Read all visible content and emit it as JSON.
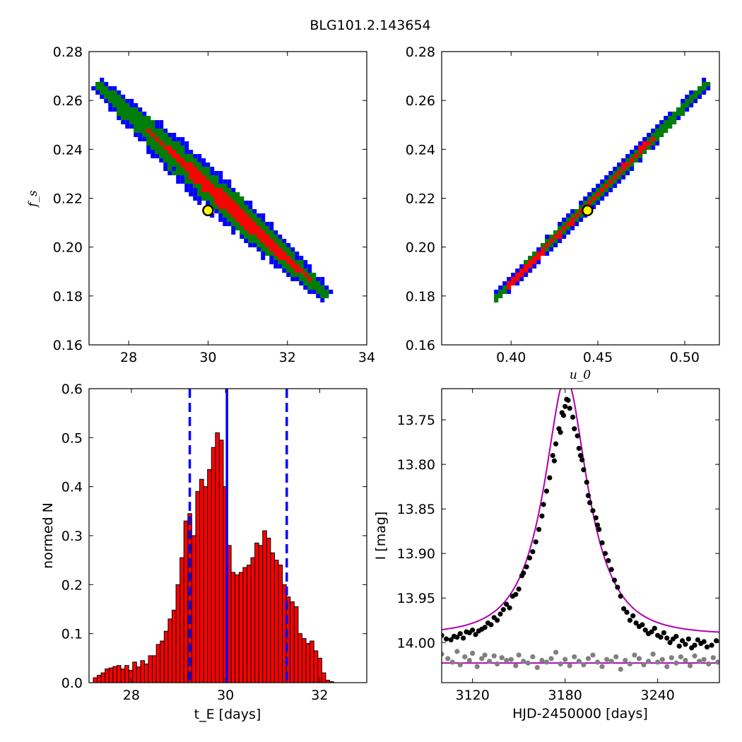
{
  "figure": {
    "title": "BLG101.2.143654"
  },
  "chart_data": [
    {
      "type": "heatmap",
      "title": "",
      "xlabel": "",
      "ylabel": "f_s",
      "xlim": [
        27,
        34
      ],
      "ylim": [
        0.16,
        0.28
      ],
      "xticks": [
        "28",
        "30",
        "32",
        "34"
      ],
      "yticks": [
        "0.16",
        "0.18",
        "0.20",
        "0.22",
        "0.24",
        "0.26",
        "0.28"
      ],
      "levels": [
        "blue",
        "green",
        "red"
      ],
      "colors": {
        "blue": "#0000ff",
        "green": "#008000",
        "red": "#ff0000"
      },
      "ridge": [
        [
          27.2,
          0.267
        ],
        [
          33.0,
          0.18
        ]
      ],
      "best_fit": {
        "x": 30.0,
        "y": 0.215
      },
      "grid": false
    },
    {
      "type": "heatmap",
      "title": "",
      "xlabel": "u_0",
      "ylabel": "",
      "xlim": [
        0.36,
        0.52
      ],
      "ylim": [
        0.16,
        0.28
      ],
      "xticks": [
        "0.40",
        "0.45",
        "0.50"
      ],
      "yticks": [
        "0.16",
        "0.18",
        "0.20",
        "0.22",
        "0.24",
        "0.26",
        "0.28"
      ],
      "levels": [
        "blue",
        "green",
        "red"
      ],
      "colors": {
        "blue": "#0000ff",
        "green": "#008000",
        "red": "#ff0000"
      },
      "ridge": [
        [
          0.391,
          0.179
        ],
        [
          0.513,
          0.267
        ]
      ],
      "best_fit": {
        "x": 0.444,
        "y": 0.215
      },
      "grid": false
    },
    {
      "type": "bar",
      "title": "",
      "xlabel": "t_E [days]",
      "ylabel": "normed N",
      "xlim": [
        27.1,
        33.0
      ],
      "ylim": [
        0,
        0.6
      ],
      "xticks": [
        "28",
        "30",
        "32"
      ],
      "yticks": [
        "0.0",
        "0.1",
        "0.2",
        "0.3",
        "0.4",
        "0.5",
        "0.6"
      ],
      "bin_start": 27.19,
      "bin_width": 0.0837,
      "values": [
        0.01,
        0.015,
        0.02,
        0.028,
        0.03,
        0.033,
        0.035,
        0.028,
        0.035,
        0.025,
        0.042,
        0.032,
        0.045,
        0.038,
        0.055,
        0.055,
        0.078,
        0.085,
        0.105,
        0.13,
        0.148,
        0.2,
        0.255,
        0.33,
        0.345,
        0.3,
        0.39,
        0.415,
        0.4,
        0.435,
        0.48,
        0.51,
        0.495,
        0.4,
        0.28,
        0.225,
        0.22,
        0.225,
        0.235,
        0.24,
        0.255,
        0.285,
        0.28,
        0.31,
        0.295,
        0.265,
        0.25,
        0.24,
        0.2,
        0.175,
        0.165,
        0.155,
        0.1,
        0.09,
        0.08,
        0.085,
        0.065,
        0.05,
        0.02,
        0.005,
        0.002
      ],
      "bar_color": "#ff0000",
      "vlines": [
        {
          "x": 30.03,
          "style": "solid",
          "color": "#0000ff"
        },
        {
          "x": 29.24,
          "style": "dashed",
          "color": "#0000ff"
        },
        {
          "x": 31.3,
          "style": "dashed",
          "color": "#0000ff"
        }
      ],
      "grid": false
    },
    {
      "type": "scatter",
      "title": "",
      "xlabel": "HJD-2450000 [days]",
      "ylabel": "I [mag]",
      "xlim": [
        3100,
        3280
      ],
      "ylim": [
        14.045,
        13.715
      ],
      "xticks": [
        "3120",
        "3180",
        "3240"
      ],
      "yticks": [
        "13.75",
        "13.80",
        "13.85",
        "13.90",
        "13.95",
        "14.00"
      ],
      "model": {
        "t0": 3180.5,
        "tE": 30.0,
        "u0": 0.444,
        "fs": 0.215,
        "I_base": 13.991,
        "color": "#b000b0"
      },
      "residual_baseline": {
        "I": 14.023,
        "color": "#b000b0"
      },
      "series": [
        {
          "color": "#000000",
          "x": [
            3100,
            3103,
            3106,
            3108,
            3110,
            3112,
            3114,
            3116,
            3118,
            3120,
            3122,
            3124,
            3126,
            3128,
            3130,
            3132,
            3134,
            3136,
            3138,
            3140,
            3142,
            3144,
            3146,
            3148,
            3150,
            3152,
            3153,
            3155,
            3157,
            3159,
            3161,
            3163,
            3165,
            3166,
            3168,
            3170,
            3172,
            3173,
            3174,
            3176,
            3177,
            3178,
            3179,
            3180,
            3181,
            3182,
            3183,
            3185,
            3186,
            3188,
            3189,
            3190,
            3191,
            3192,
            3194,
            3195,
            3196,
            3198,
            3200,
            3201,
            3202,
            3204,
            3206,
            3208,
            3210,
            3212,
            3214,
            3216,
            3218,
            3220,
            3222,
            3224,
            3226,
            3228,
            3230,
            3232,
            3234,
            3236,
            3238,
            3240,
            3242,
            3244,
            3246,
            3248,
            3250,
            3252,
            3254,
            3256,
            3258,
            3260,
            3262,
            3264,
            3266,
            3268,
            3270,
            3272,
            3275,
            3278
          ],
          "y": [
            13.992,
            13.996,
            13.997,
            13.993,
            13.994,
            13.99,
            13.995,
            13.988,
            13.989,
            13.986,
            13.991,
            13.987,
            13.985,
            13.983,
            13.978,
            13.98,
            13.972,
            13.975,
            13.968,
            13.963,
            13.957,
            13.961,
            13.948,
            13.946,
            13.94,
            13.925,
            13.922,
            13.915,
            13.905,
            13.898,
            13.887,
            13.873,
            13.858,
            13.845,
            13.83,
            13.815,
            13.79,
            13.796,
            13.777,
            13.76,
            13.764,
            13.742,
            13.745,
            13.735,
            13.727,
            13.728,
            13.737,
            13.747,
            13.76,
            13.768,
            13.782,
            13.79,
            13.795,
            13.806,
            13.82,
            13.835,
            13.843,
            13.852,
            13.86,
            13.868,
            13.873,
            13.888,
            13.9,
            13.908,
            13.918,
            13.93,
            13.938,
            13.948,
            13.962,
            13.966,
            13.975,
            13.97,
            13.978,
            13.982,
            13.98,
            13.986,
            13.99,
            13.988,
            13.984,
            13.992,
            13.994,
            13.989,
            13.995,
            14.0,
            13.996,
            13.993,
            14.004,
            13.998,
            14.002,
            13.996,
            14.006,
            14.003,
            13.997,
            14.001,
            13.999,
            14.005,
            14.003,
            13.998
          ]
        },
        {
          "color": "#808080",
          "x": [
            3100,
            3104,
            3107,
            3110,
            3112,
            3115,
            3118,
            3120,
            3123,
            3126,
            3128,
            3131,
            3134,
            3136,
            3139,
            3142,
            3145,
            3148,
            3150,
            3153,
            3156,
            3159,
            3162,
            3165,
            3168,
            3171,
            3174,
            3177,
            3180,
            3183,
            3186,
            3189,
            3192,
            3195,
            3198,
            3201,
            3204,
            3207,
            3210,
            3213,
            3216,
            3219,
            3222,
            3225,
            3228,
            3231,
            3234,
            3237,
            3240,
            3243,
            3246,
            3249,
            3252,
            3255,
            3258,
            3261,
            3264,
            3267,
            3270,
            3273,
            3276,
            3279
          ],
          "y": [
            14.013,
            14.018,
            14.022,
            14.01,
            14.025,
            14.016,
            14.02,
            14.012,
            14.027,
            14.018,
            14.014,
            14.021,
            14.015,
            14.024,
            14.017,
            14.02,
            14.019,
            14.026,
            14.014,
            14.021,
            14.023,
            14.016,
            14.028,
            14.02,
            14.022,
            14.018,
            14.011,
            14.024,
            14.019,
            14.026,
            14.016,
            14.021,
            14.025,
            14.018,
            14.014,
            14.022,
            14.027,
            14.019,
            14.021,
            14.016,
            14.03,
            14.02,
            14.024,
            14.014,
            14.018,
            14.025,
            14.021,
            14.013,
            14.022,
            14.019,
            14.027,
            14.017,
            14.023,
            14.016,
            14.02,
            14.026,
            14.015,
            14.021,
            14.019,
            14.024,
            14.017,
            14.022
          ]
        }
      ],
      "grid": false
    }
  ]
}
